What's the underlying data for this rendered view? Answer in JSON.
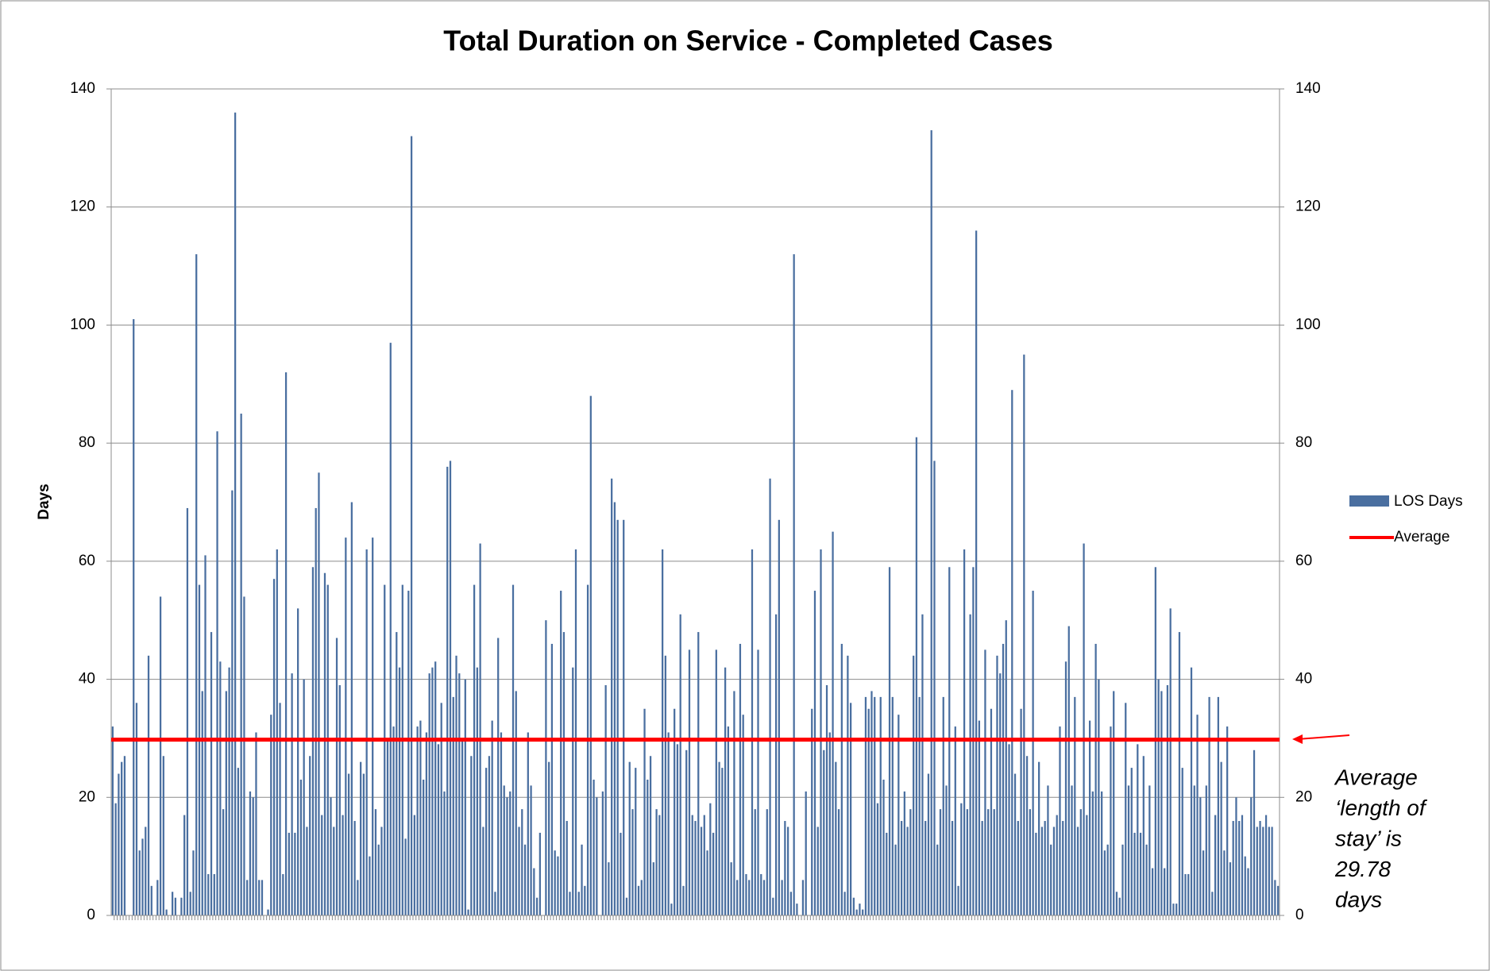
{
  "chart_data": {
    "type": "bar",
    "title": "Total Duration on Service - Completed Cases",
    "y_label": "Days",
    "ylim": [
      0,
      140
    ],
    "yticks": [
      0,
      20,
      40,
      60,
      80,
      100,
      120,
      140
    ],
    "y2lim": [
      0,
      140
    ],
    "y2ticks": [
      0,
      20,
      40,
      60,
      80,
      100,
      120,
      140
    ],
    "grid": true,
    "legend": "right",
    "series": [
      {
        "name": "LOS Days",
        "color": "#4a6fa0",
        "values": [
          32,
          19,
          24,
          26,
          27,
          0,
          0,
          101,
          36,
          11,
          13,
          15,
          44,
          5,
          0,
          6,
          54,
          27,
          1,
          0,
          4,
          3,
          0,
          3,
          17,
          69,
          4,
          11,
          112,
          56,
          38,
          61,
          7,
          48,
          7,
          82,
          43,
          18,
          38,
          42,
          72,
          136,
          25,
          85,
          54,
          6,
          21,
          20,
          31,
          6,
          6,
          0,
          1,
          34,
          57,
          62,
          36,
          7,
          92,
          14,
          41,
          14,
          52,
          23,
          40,
          15,
          27,
          59,
          69,
          75,
          17,
          58,
          56,
          20,
          15,
          47,
          39,
          17,
          64,
          24,
          70,
          16,
          6,
          26,
          24,
          62,
          10,
          64,
          18,
          12,
          15,
          56,
          30,
          97,
          32,
          48,
          42,
          56,
          13,
          55,
          132,
          17,
          32,
          33,
          23,
          31,
          41,
          42,
          43,
          29,
          36,
          21,
          76,
          77,
          37,
          44,
          41,
          30,
          40,
          1,
          27,
          56,
          42,
          63,
          15,
          25,
          27,
          33,
          4,
          47,
          31,
          22,
          20,
          21,
          56,
          38,
          15,
          18,
          12,
          31,
          22,
          8,
          3,
          14,
          0,
          50,
          26,
          46,
          11,
          10,
          55,
          48,
          16,
          4,
          42,
          62,
          4,
          12,
          5,
          56,
          88,
          23,
          20,
          0,
          21,
          39,
          9,
          74,
          70,
          67,
          14,
          67,
          3,
          26,
          18,
          25,
          5,
          6,
          35,
          23,
          27,
          9,
          18,
          17,
          62,
          44,
          31,
          2,
          35,
          29,
          51,
          5,
          28,
          45,
          17,
          16,
          48,
          15,
          17,
          11,
          19,
          14,
          45,
          26,
          25,
          42,
          32,
          9,
          38,
          6,
          46,
          34,
          7,
          6,
          62,
          18,
          45,
          7,
          6,
          18,
          74,
          3,
          51,
          67,
          6,
          16,
          15,
          4,
          112,
          2,
          0,
          6,
          21,
          0,
          35,
          55,
          15,
          62,
          28,
          39,
          31,
          65,
          26,
          18,
          46,
          4,
          44,
          36,
          3,
          1,
          2,
          1,
          37,
          35,
          38,
          37,
          19,
          37,
          23,
          14,
          59,
          37,
          12,
          34,
          16,
          21,
          15,
          18,
          44,
          81,
          37,
          51,
          16,
          24,
          133,
          77,
          12,
          18,
          37,
          22,
          59,
          16,
          32,
          5,
          19,
          62,
          18,
          51,
          59,
          116,
          33,
          16,
          45,
          18,
          35,
          18,
          44,
          41,
          46,
          50,
          29,
          89,
          24,
          16,
          35,
          95,
          27,
          18,
          55,
          14,
          26,
          15,
          16,
          22,
          12,
          15,
          17,
          32,
          16,
          43,
          49,
          22,
          37,
          15,
          18,
          63,
          17,
          33,
          21,
          46,
          40,
          21,
          11,
          12,
          32,
          38,
          4,
          3,
          12,
          36,
          22,
          25,
          14,
          29,
          14,
          27,
          12,
          22,
          8,
          59,
          40,
          38,
          8,
          39,
          52,
          2,
          2,
          48,
          25,
          7,
          7,
          42,
          22,
          34,
          20,
          11,
          22,
          37,
          4,
          17,
          37,
          26,
          11,
          32,
          9,
          16,
          20,
          16,
          17,
          10,
          8,
          20,
          28,
          15,
          16,
          15,
          17,
          15,
          15,
          6,
          5
        ]
      }
    ],
    "average": {
      "name": "Average",
      "color": "#ff0000",
      "value": 29.78
    },
    "annotation": [
      "Average",
      "‘length of",
      "stay’ is",
      "29.78",
      "days"
    ]
  }
}
